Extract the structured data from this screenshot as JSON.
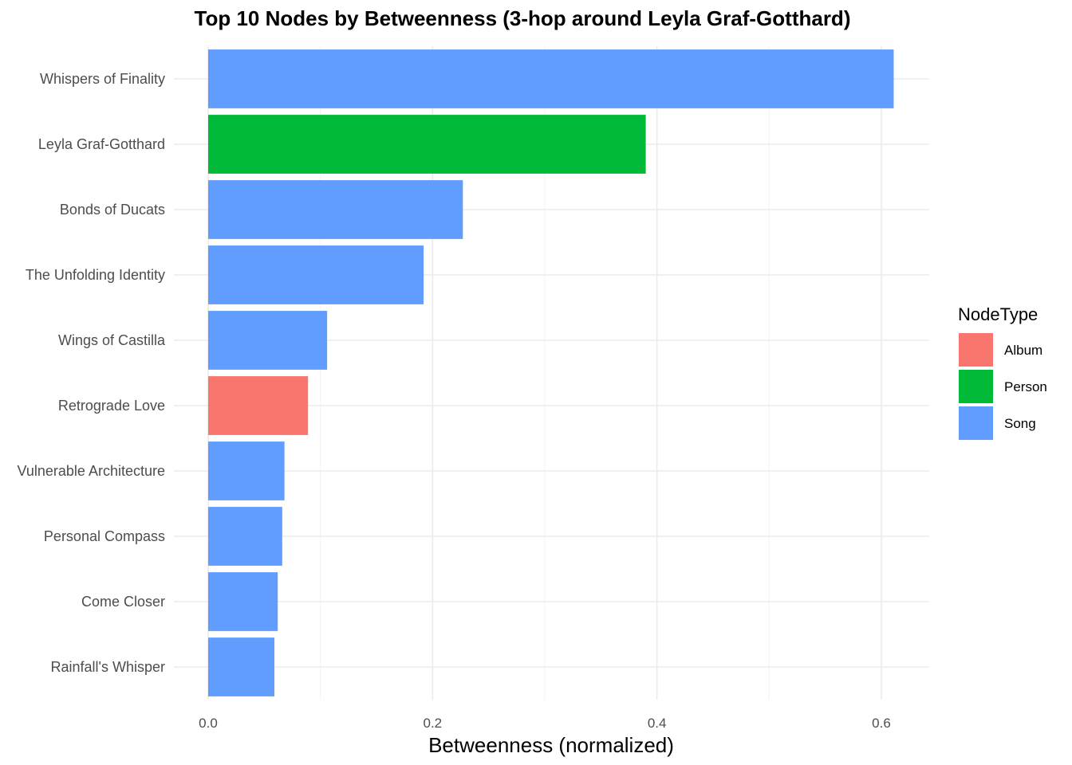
{
  "chart_data": {
    "type": "bar",
    "orientation": "horizontal",
    "title": "Top 10 Nodes by Betweenness (3-hop around Leyla Graf-Gotthard)",
    "xlabel": "Betweenness (normalized)",
    "ylabel": "",
    "xlim": [
      0,
      0.64
    ],
    "xticks": [
      0.0,
      0.2,
      0.4,
      0.6
    ],
    "xtick_labels": [
      "0.0",
      "0.2",
      "0.4",
      "0.6"
    ],
    "grid": true,
    "legend": {
      "title": "NodeType",
      "placement": "right",
      "entries": [
        {
          "label": "Album",
          "color": "#F8766D"
        },
        {
          "label": "Person",
          "color": "#00BA38"
        },
        {
          "label": "Song",
          "color": "#619CFF"
        }
      ]
    },
    "categories": [
      "Whispers of Finality",
      "Leyla Graf-Gotthard",
      "Bonds of Ducats",
      "The Unfolding Identity",
      "Wings of Castilla",
      "Retrograde Love",
      "Vulnerable Architecture",
      "Personal Compass",
      "Come Closer",
      "Rainfall's Whisper"
    ],
    "values": [
      0.611,
      0.39,
      0.227,
      0.192,
      0.106,
      0.089,
      0.068,
      0.066,
      0.062,
      0.059
    ],
    "node_types": [
      "Song",
      "Person",
      "Song",
      "Song",
      "Song",
      "Album",
      "Song",
      "Song",
      "Song",
      "Song"
    ]
  }
}
